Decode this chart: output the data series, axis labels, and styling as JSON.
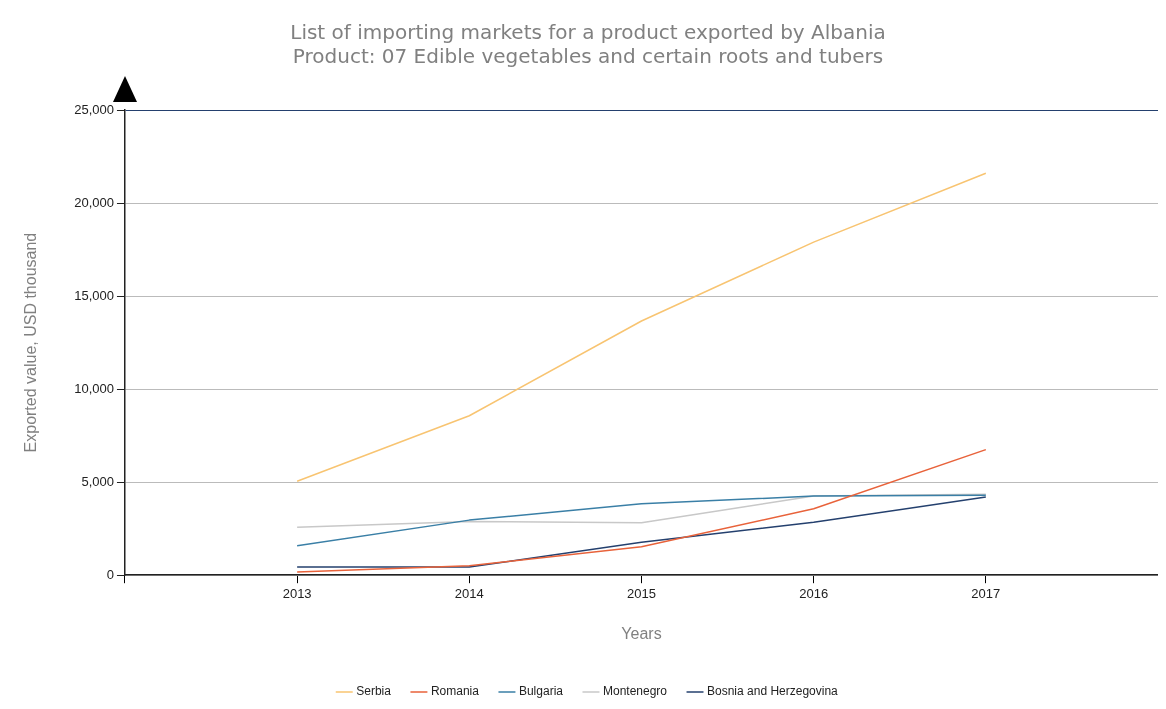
{
  "chart_data": {
    "type": "line",
    "title": "List of importing markets for a product exported by Albania",
    "subtitle": "Product: 07 Edible vegetables and certain roots and tubers",
    "xlabel": "Years",
    "ylabel": "Exported value, USD thousand",
    "x": [
      2013,
      2014,
      2015,
      2016,
      2017
    ],
    "xlim": [
      2012,
      2018
    ],
    "xticks": [
      {
        "value": 2012,
        "label": null
      },
      2013,
      2014,
      2015,
      2016,
      2017
    ],
    "ylim": [
      0,
      25000
    ],
    "yticks": [
      0,
      {
        "value": 5000,
        "label": "5,000"
      },
      {
        "value": 10000,
        "label": "10,000"
      },
      {
        "value": 15000,
        "label": "15,000"
      },
      {
        "value": 20000,
        "label": "20,000"
      },
      {
        "value": 25000,
        "label": "25,000"
      }
    ],
    "series": [
      {
        "name": "Serbia",
        "color": "#f8c471",
        "values": [
          5050,
          8570,
          13660,
          17900,
          21600
        ]
      },
      {
        "name": "Romania",
        "color": "#e8623a",
        "values": [
          170,
          510,
          1530,
          3570,
          6750
        ]
      },
      {
        "name": "Bulgaria",
        "color": "#3a7fa6",
        "values": [
          1580,
          2960,
          3840,
          4250,
          4300
        ]
      },
      {
        "name": "Montenegro",
        "color": "#c8c8c8",
        "values": [
          2580,
          2890,
          2820,
          4250,
          4350
        ]
      },
      {
        "name": "Bosnia and Herzegovina",
        "color": "#24406e",
        "values": [
          440,
          440,
          1770,
          2840,
          4200
        ]
      }
    ],
    "grid": "y",
    "legend": "bottom",
    "marker": "none",
    "line_style": "solid"
  }
}
